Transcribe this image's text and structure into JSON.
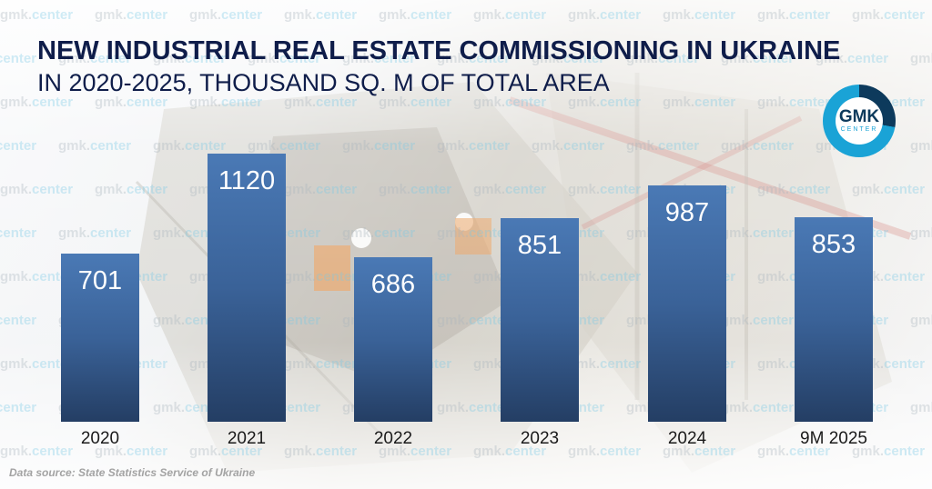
{
  "header": {
    "title": "NEW INDUSTRIAL REAL ESTATE COMMISSIONING IN UKRAINE",
    "subtitle": "IN 2020-2025, THOUSAND SQ. M OF TOTAL AREA"
  },
  "logo": {
    "main": "GMK",
    "sub": "CENTER",
    "colors": {
      "dark": "#0d3a5c",
      "light": "#1aa3d6"
    }
  },
  "watermark": {
    "prefix": "gmk.",
    "suffix": "center"
  },
  "footer": {
    "source": "Data source: State Statistics Service of Ukraine"
  },
  "colors": {
    "bar_top": "#4a79b5",
    "bar_bottom": "#243e64",
    "title": "#0f1d4a"
  },
  "chart_data": {
    "type": "bar",
    "title": "NEW INDUSTRIAL REAL ESTATE COMMISSIONING IN UKRAINE",
    "subtitle": "IN 2020-2025, THOUSAND SQ. M OF TOTAL AREA",
    "categories": [
      "2020",
      "2021",
      "2022",
      "2023",
      "2024",
      "9M 2025"
    ],
    "values": [
      701,
      1120,
      686,
      851,
      987,
      853
    ],
    "labels": [
      "701",
      "1120",
      "686",
      "851",
      "987",
      "853"
    ],
    "xlabel": "",
    "ylabel": "Thousand sq. m",
    "ylim": [
      0,
      1200
    ],
    "grid": false,
    "legend": null,
    "annotations": [
      "Data source: State Statistics Service of Ukraine"
    ]
  }
}
